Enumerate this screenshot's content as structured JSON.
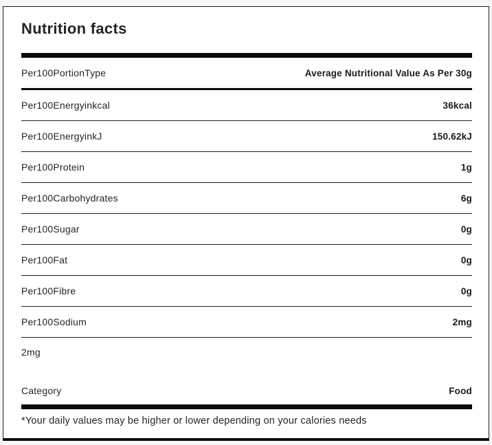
{
  "card": {
    "title": "Nutrition facts",
    "header_row": {
      "label": "Per100PortionType",
      "value": "Average Nutritional Value As Per 30g"
    },
    "rows": [
      {
        "label": "Per100Energyinkcal",
        "value": "36kcal"
      },
      {
        "label": "Per100EnergyinkJ",
        "value": "150.62kJ"
      },
      {
        "label": "Per100Protein",
        "value": "1g"
      },
      {
        "label": "Per100Carbohydrates",
        "value": "6g"
      },
      {
        "label": "Per100Sugar",
        "value": "0g"
      },
      {
        "label": "Per100Fat",
        "value": "0g"
      },
      {
        "label": "Per100Fibre",
        "value": "0g"
      },
      {
        "label": "Per100Sodium",
        "value": "2mg"
      }
    ],
    "sodium_note": "2mg",
    "category_row": {
      "label": "Category",
      "value": "Food"
    },
    "footnote": "*Your daily values may be higher or lower depending on your calories needs",
    "colors": {
      "page_bg": "#f7f7f7",
      "card_bg": "#ffffff",
      "border": "#1d1d1d",
      "bar": "#0a0a0a",
      "text": "#212529",
      "value_text": "#1a1a1a"
    }
  }
}
